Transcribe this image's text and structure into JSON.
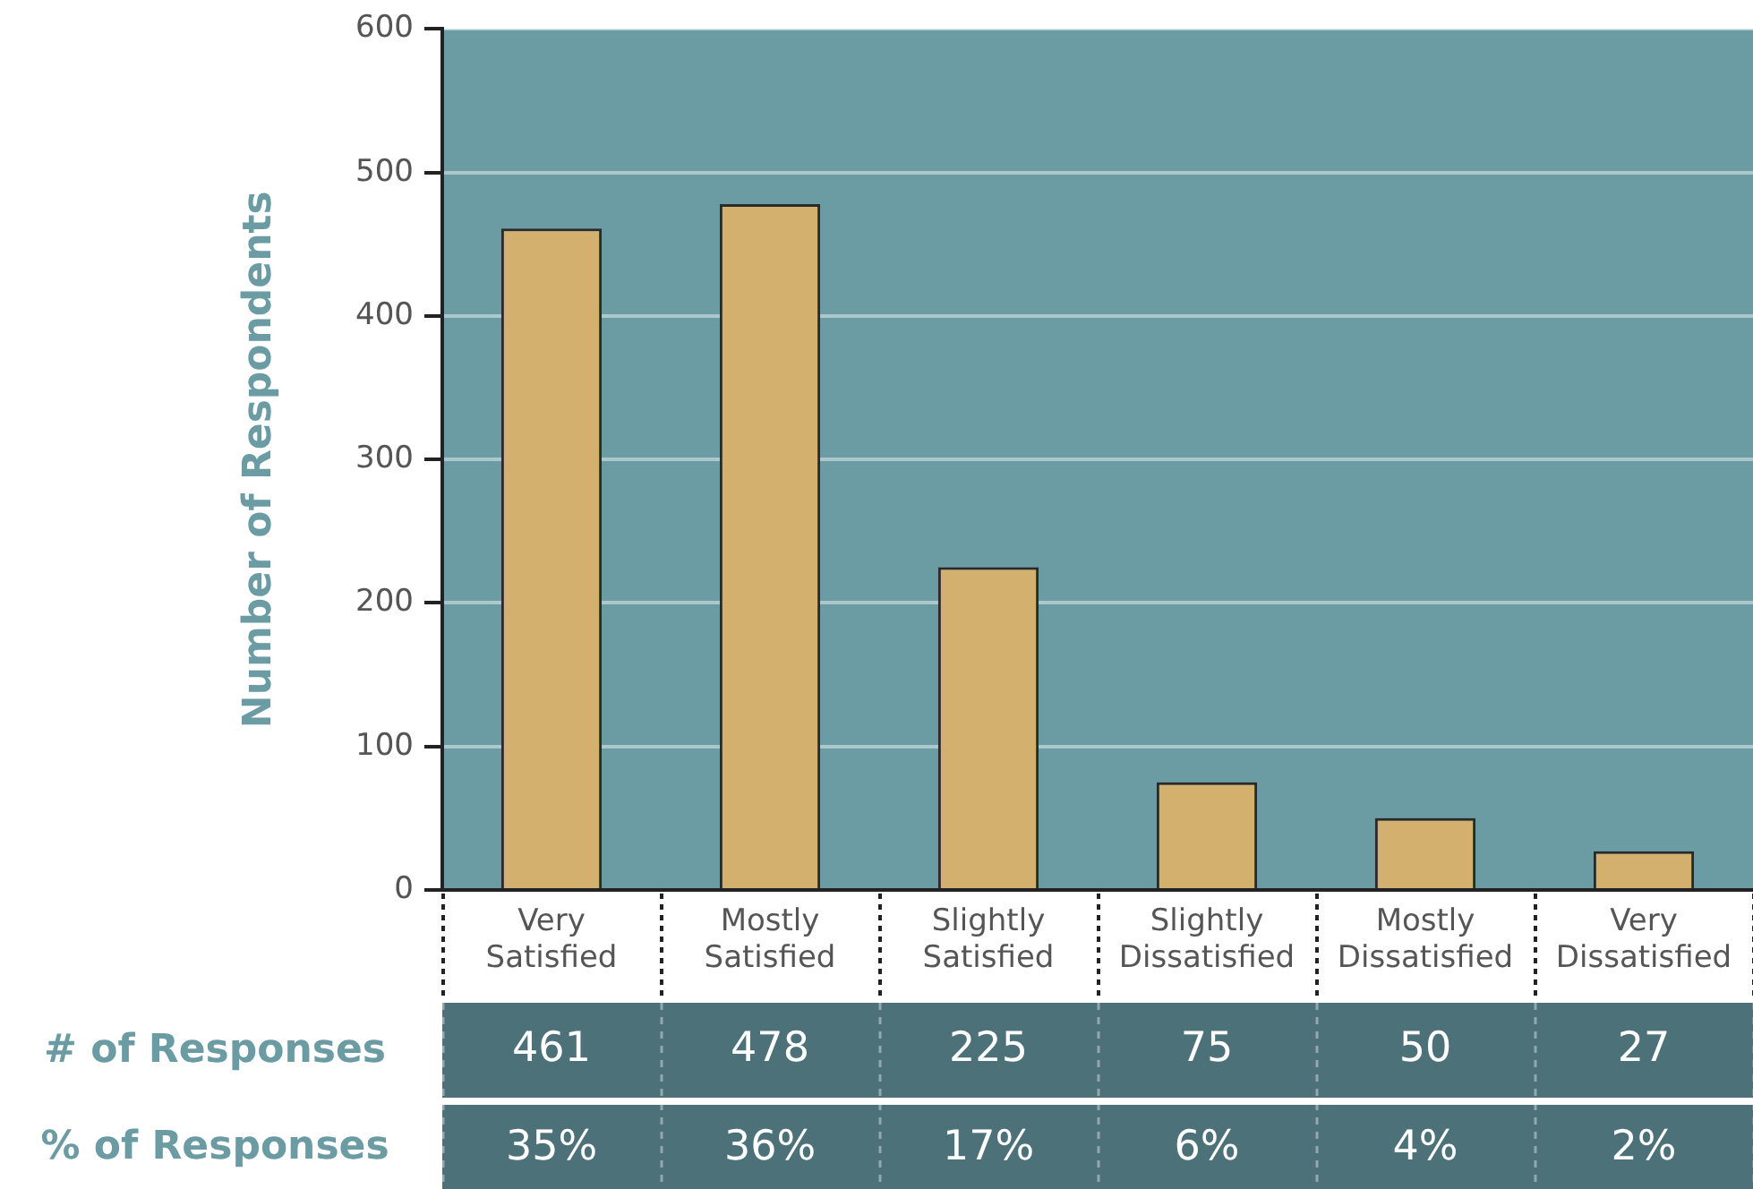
{
  "chart_data": {
    "type": "bar",
    "ylabel": "Number of Respondents",
    "categories": [
      "Very Satisfied",
      "Mostly Satisfied",
      "Slightly Satisfied",
      "Slightly Dissatisfied",
      "Mostly Dissatisfied",
      "Very Dissatisfied"
    ],
    "values": [
      461,
      478,
      225,
      75,
      50,
      27
    ],
    "color": "#d4b06f",
    "ylim": [
      0,
      600
    ],
    "yticks": [
      0,
      100,
      200,
      300,
      400,
      500,
      600
    ],
    "grid": "y",
    "data_labels": true,
    "annotations": [
      "# of Responses",
      "% of Responses",
      "35%",
      "36%",
      "17%",
      "6%",
      "4%",
      "2%"
    ]
  }
}
